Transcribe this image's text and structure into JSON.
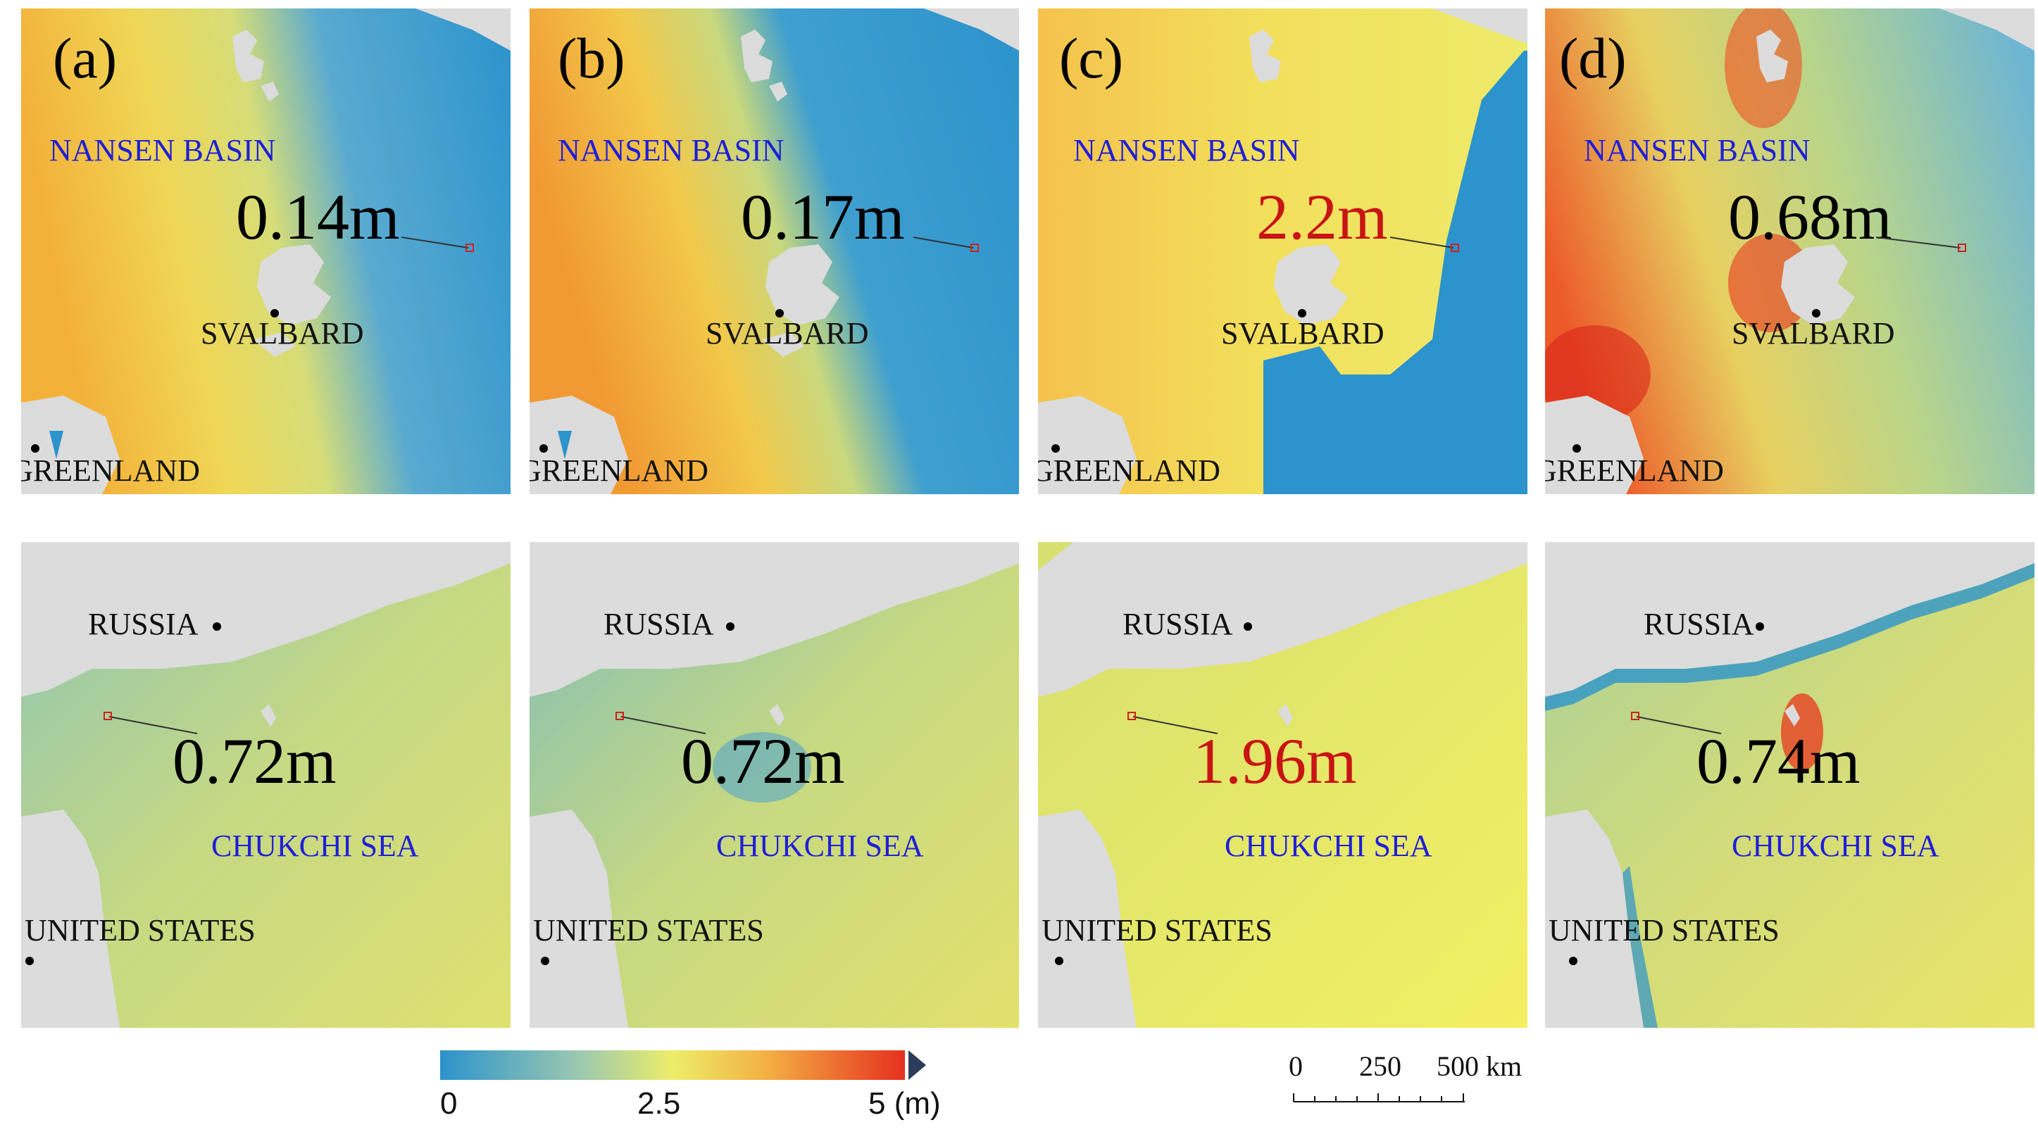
{
  "colors": {
    "ice_low": "#2c93cc",
    "ice_mid": "#eded6a",
    "ice_high": "#e6301e",
    "land": "#dcdcdc",
    "region_label": "#1f1fd8",
    "highlight_value": "#c81414",
    "marker": "#d02020"
  },
  "panels": [
    {
      "letter": "(a)",
      "value": "0.14m",
      "highlight": false,
      "scheme": "a"
    },
    {
      "letter": "(b)",
      "value": "0.17m",
      "highlight": false,
      "scheme": "b"
    },
    {
      "letter": "(c)",
      "value": "2.2m",
      "highlight": true,
      "scheme": "c"
    },
    {
      "letter": "(d)",
      "value": "0.68m",
      "highlight": false,
      "scheme": "d"
    }
  ],
  "top_labels": {
    "sea": "NANSEN BASIN",
    "island": "SVALBARD",
    "land": "GREENLAND"
  },
  "bottom_labels": {
    "land_north": "RUSSIA",
    "sea": "CHUKCHI SEA",
    "land_south": "UNITED STATES"
  },
  "bottom_values": [
    {
      "value": "0.72m",
      "highlight": false
    },
    {
      "value": "0.72m",
      "highlight": false
    },
    {
      "value": "1.96m",
      "highlight": true
    },
    {
      "value": "0.74m",
      "highlight": false
    }
  ],
  "colorbar": {
    "ticks": [
      "0",
      "2.5",
      "5 (m)"
    ],
    "min": 0,
    "max": 5,
    "unit": "m"
  },
  "scalebar": {
    "ticks": [
      "0",
      "250",
      "500 km"
    ]
  }
}
